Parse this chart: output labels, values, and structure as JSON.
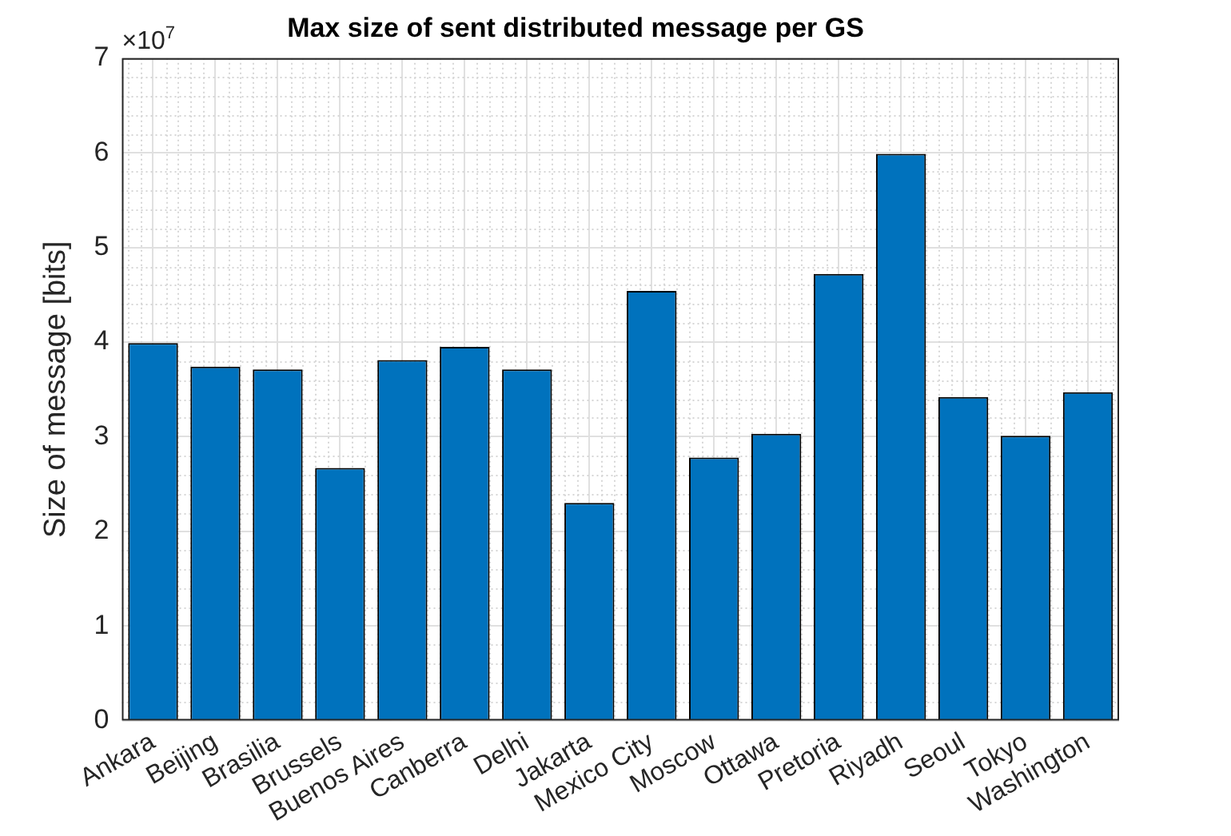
{
  "chart_data": {
    "type": "bar",
    "title": "Max size of sent distributed message per GS",
    "ylabel": "Size of message [bits]",
    "annotations": [
      "×10$^{7}$"
    ],
    "categories": [
      "Ankara",
      "Beijing",
      "Brasilia",
      "Brussels",
      "Buenos Aires",
      "Canberra",
      "Delhi",
      "Jakarta",
      "Mexico City",
      "Moscow",
      "Ottawa",
      "Pretoria",
      "Riyadh",
      "Seoul",
      "Tokyo",
      "Washington"
    ],
    "values": [
      3.99,
      3.74,
      3.71,
      2.67,
      3.81,
      3.95,
      3.71,
      2.3,
      4.54,
      2.78,
      3.03,
      4.72,
      5.99,
      3.42,
      3.01,
      3.47
    ],
    "color": "#0072bd",
    "ylim": [
      0,
      7
    ],
    "yticks": [
      0,
      1,
      2,
      3,
      4,
      5,
      6,
      7
    ],
    "grid": true,
    "legend": false
  }
}
